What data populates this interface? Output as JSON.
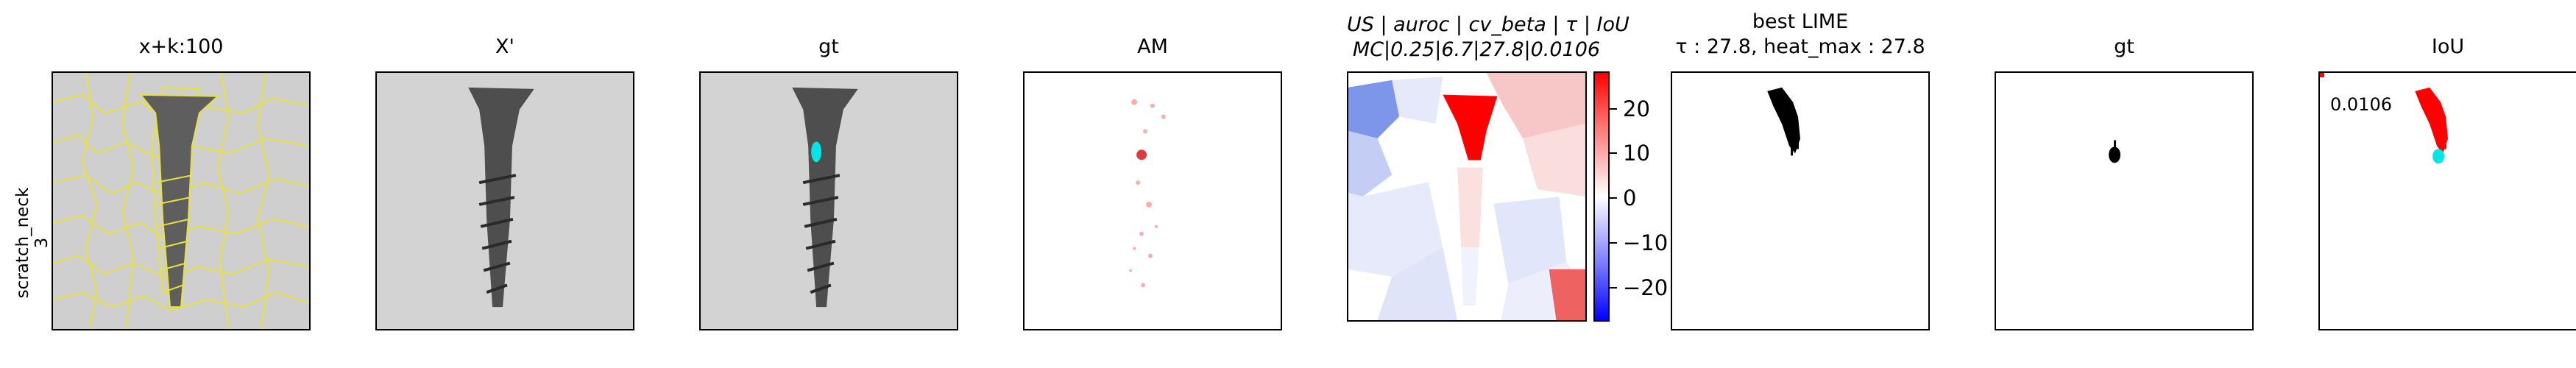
{
  "row_label": {
    "line1": "scratch_neck",
    "line2": "3"
  },
  "panels": [
    {
      "title": "x+k:100"
    },
    {
      "title": "X'"
    },
    {
      "title": "gt"
    },
    {
      "title": "AM"
    },
    {
      "title_line1": "US | auroc | cv_beta | τ | IoU",
      "title_line2": "MC|0.25|6.7|27.8|0.0106"
    },
    {
      "title_line1": "best LIME",
      "title_line2": "τ : 27.8, heat_max : 27.8"
    },
    {
      "title": "gt"
    },
    {
      "title": "IoU",
      "value": "0.0106"
    }
  ],
  "colorbar": {
    "ticks": [
      "20",
      "10",
      "0",
      "−10",
      "−20"
    ],
    "colors": {
      "max": "#ff0000",
      "mid": "#ffffff",
      "min": "#0000ff"
    }
  }
}
